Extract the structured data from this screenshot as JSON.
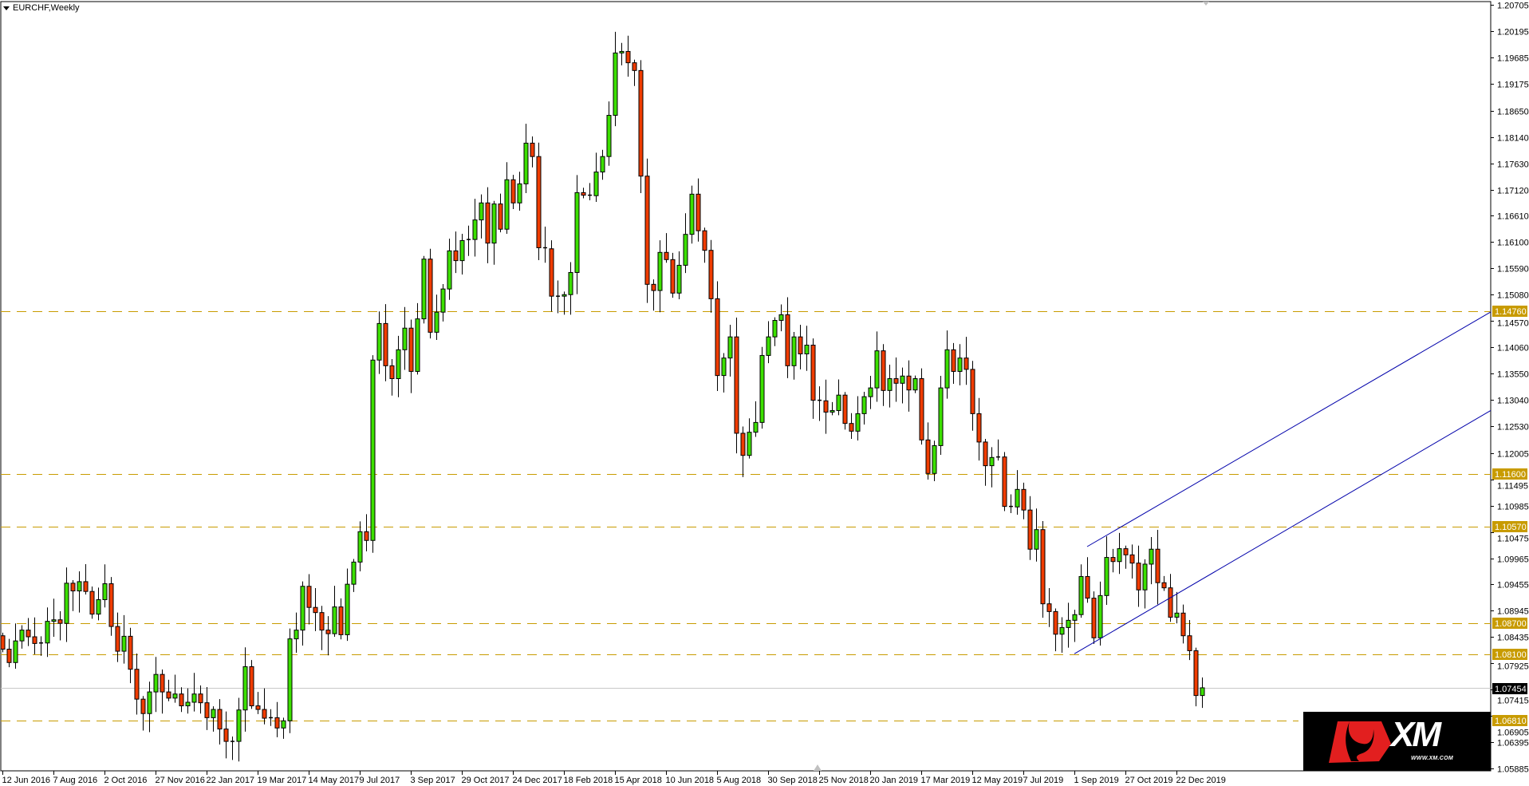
{
  "window": {
    "title": "EURCHF,Weekly"
  },
  "logo": {
    "brand": "XM",
    "url": "WWW.XM.COM"
  },
  "colors": {
    "bull": "#3ce000",
    "bear": "#f03c00",
    "level": "#c89b00",
    "channel": "#0000aa",
    "current": "#c8c8c8"
  },
  "chart_data": {
    "type": "candlestick",
    "title": "EURCHF,Weekly",
    "timeframe": "weekly",
    "first_bar_date": "2016-06-12",
    "first_open": 1.0846,
    "closes": [
      1.082,
      1.0794,
      1.0836,
      1.0857,
      1.0844,
      1.0831,
      1.0832,
      1.0874,
      1.0877,
      1.087,
      1.0948,
      1.0933,
      1.0951,
      1.0932,
      1.0888,
      1.0916,
      1.0947,
      1.0864,
      1.0816,
      1.0845,
      1.0781,
      1.0723,
      1.0695,
      1.0737,
      1.0771,
      1.0737,
      1.0725,
      1.0733,
      1.071,
      1.0717,
      1.0733,
      1.0716,
      1.0687,
      1.0703,
      1.0665,
      1.0641,
      1.0641,
      1.0702,
      1.0786,
      1.071,
      1.0703,
      1.0686,
      1.0687,
      1.0667,
      1.0681,
      1.084,
      1.0857,
      1.0942,
      1.0901,
      1.0891,
      1.0857,
      1.085,
      1.0902,
      1.0848,
      1.0946,
      1.0989,
      1.1048,
      1.1031,
      1.1381,
      1.1452,
      1.137,
      1.1345,
      1.1401,
      1.1443,
      1.1359,
      1.1461,
      1.1577,
      1.1435,
      1.1474,
      1.1519,
      1.1593,
      1.1574,
      1.1613,
      1.1615,
      1.1653,
      1.1686,
      1.1608,
      1.1684,
      1.1635,
      1.1731,
      1.1686,
      1.1723,
      1.1802,
      1.1776,
      1.1599,
      1.1597,
      1.1505,
      1.1505,
      1.1508,
      1.1551,
      1.1706,
      1.1701,
      1.17,
      1.1746,
      1.1776,
      1.1856,
      1.1977,
      1.198,
      1.1958,
      1.1943,
      1.1738,
      1.1528,
      1.1516,
      1.159,
      1.1576,
      1.1511,
      1.1565,
      1.1625,
      1.1703,
      1.1632,
      1.1594,
      1.15,
      1.1351,
      1.1385,
      1.1426,
      1.1239,
      1.1196,
      1.1241,
      1.126,
      1.139,
      1.1426,
      1.1458,
      1.1469,
      1.137,
      1.1426,
      1.1393,
      1.141,
      1.1303,
      1.1302,
      1.128,
      1.1283,
      1.1313,
      1.1258,
      1.1243,
      1.1277,
      1.131,
      1.1327,
      1.1399,
      1.1322,
      1.1345,
      1.1336,
      1.135,
      1.1323,
      1.1345,
      1.1226,
      1.1161,
      1.1215,
      1.1327,
      1.1401,
      1.1359,
      1.1385,
      1.1363,
      1.1277,
      1.1222,
      1.1176,
      1.1192,
      1.1193,
      1.1097,
      1.1096,
      1.113,
      1.109,
      1.1014,
      1.1052,
      1.0908,
      1.0893,
      1.0849,
      1.0862,
      1.0876,
      1.0887,
      1.0961,
      1.0919,
      1.0842,
      1.0924,
      1.0998,
      1.099,
      1.1015,
      1.1003,
      1.0987,
      1.0935,
      1.0985,
      1.1014,
      1.0949,
      1.0939,
      1.0882,
      1.089,
      1.0846,
      1.0817,
      1.073,
      1.0745
    ],
    "ylim": [
      1.05885,
      1.20705
    ],
    "y_ticks": [
      "1.20705",
      "1.20195",
      "1.19685",
      "1.19175",
      "1.18650",
      "1.18140",
      "1.17630",
      "1.17120",
      "1.16610",
      "1.16100",
      "1.15590",
      "1.15080",
      "1.14570",
      "1.14060",
      "1.13550",
      "1.13040",
      "1.12530",
      "1.12005",
      "1.11495",
      "1.10985",
      "1.10475",
      "1.09965",
      "1.09455",
      "1.08945",
      "1.08435",
      "1.07925",
      "1.07415",
      "1.06905",
      "1.06395",
      "1.05885"
    ],
    "x_labels": [
      "12 Jun 2016",
      "7 Aug 2016",
      "2 Oct 2016",
      "27 Nov 2016",
      "22 Jan 2017",
      "19 Mar 2017",
      "14 May 2017",
      "9 Jul 2017",
      "3 Sep 2017",
      "29 Oct 2017",
      "24 Dec 2017",
      "18 Feb 2018",
      "15 Apr 2018",
      "10 Jun 2018",
      "5 Aug 2018",
      "30 Sep 2018",
      "25 Nov 2018",
      "20 Jan 2019",
      "17 Mar 2019",
      "12 May 2019",
      "7 Jul 2019",
      "1 Sep 2019",
      "27 Oct 2019",
      "22 Dec 2019"
    ],
    "x_label_every_bars": 8,
    "levels": [
      "1.14760",
      "1.11600",
      "1.10570",
      "1.08700",
      "1.08100",
      "1.06810"
    ],
    "current_price": "1.07454",
    "channel": [
      {
        "from": {
          "date": "2019-09-01",
          "price": 1.0811
        },
        "to": {
          "date": "2019-12-29",
          "price": 1.0934
        },
        "ray": true
      },
      {
        "from": {
          "date": "2019-09-15",
          "price": 1.1019
        },
        "to": {
          "date": "2019-12-29",
          "price": 1.1127
        },
        "ray": true
      }
    ]
  }
}
